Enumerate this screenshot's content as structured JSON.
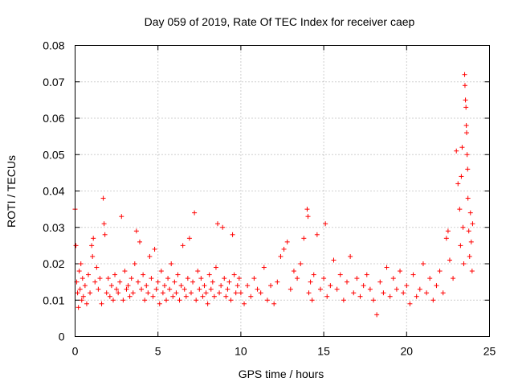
{
  "chart_data": {
    "type": "scatter",
    "title": "Day 059 of 2019, Rate Of TEC Index for receiver caep",
    "xlabel": "GPS time / hours",
    "ylabel": "ROTI / TECUs",
    "xlim": [
      0,
      25
    ],
    "ylim": [
      0,
      0.08
    ],
    "xticks": [
      0,
      5,
      10,
      15,
      20,
      25
    ],
    "yticks": [
      0,
      0.01,
      0.02,
      0.03,
      0.04,
      0.05,
      0.06,
      0.07,
      0.08
    ],
    "xtick_labels": [
      "0",
      "5",
      "10",
      "15",
      "20",
      "25"
    ],
    "ytick_labels": [
      "0",
      "0.01",
      "0.02",
      "0.03",
      "0.04",
      "0.05",
      "0.06",
      "0.07",
      "0.08"
    ],
    "grid": true,
    "marker": "+",
    "color": "#ff0000",
    "series": [
      {
        "name": "ROTI",
        "points": [
          [
            0.0,
            0.035
          ],
          [
            0.05,
            0.025
          ],
          [
            0.1,
            0.015
          ],
          [
            0.15,
            0.012
          ],
          [
            0.2,
            0.008
          ],
          [
            0.25,
            0.018
          ],
          [
            0.3,
            0.013
          ],
          [
            0.35,
            0.02
          ],
          [
            0.4,
            0.01
          ],
          [
            0.45,
            0.016
          ],
          [
            0.5,
            0.011
          ],
          [
            0.6,
            0.014
          ],
          [
            0.7,
            0.009
          ],
          [
            0.8,
            0.017
          ],
          [
            0.9,
            0.012
          ],
          [
            1.0,
            0.025
          ],
          [
            1.05,
            0.022
          ],
          [
            1.1,
            0.027
          ],
          [
            1.2,
            0.015
          ],
          [
            1.3,
            0.019
          ],
          [
            1.4,
            0.013
          ],
          [
            1.5,
            0.016
          ],
          [
            1.6,
            0.009
          ],
          [
            1.7,
            0.038
          ],
          [
            1.75,
            0.031
          ],
          [
            1.8,
            0.028
          ],
          [
            1.9,
            0.012
          ],
          [
            2.0,
            0.016
          ],
          [
            2.1,
            0.011
          ],
          [
            2.2,
            0.014
          ],
          [
            2.3,
            0.01
          ],
          [
            2.4,
            0.017
          ],
          [
            2.5,
            0.013
          ],
          [
            2.6,
            0.012
          ],
          [
            2.7,
            0.015
          ],
          [
            2.8,
            0.033
          ],
          [
            2.9,
            0.01
          ],
          [
            3.0,
            0.018
          ],
          [
            3.1,
            0.013
          ],
          [
            3.2,
            0.014
          ],
          [
            3.3,
            0.011
          ],
          [
            3.4,
            0.016
          ],
          [
            3.5,
            0.012
          ],
          [
            3.6,
            0.02
          ],
          [
            3.7,
            0.029
          ],
          [
            3.8,
            0.015
          ],
          [
            3.9,
            0.026
          ],
          [
            4.0,
            0.013
          ],
          [
            4.1,
            0.017
          ],
          [
            4.2,
            0.01
          ],
          [
            4.3,
            0.014
          ],
          [
            4.4,
            0.012
          ],
          [
            4.5,
            0.022
          ],
          [
            4.6,
            0.016
          ],
          [
            4.7,
            0.011
          ],
          [
            4.8,
            0.024
          ],
          [
            4.9,
            0.013
          ],
          [
            5.0,
            0.015
          ],
          [
            5.1,
            0.009
          ],
          [
            5.2,
            0.018
          ],
          [
            5.3,
            0.012
          ],
          [
            5.4,
            0.014
          ],
          [
            5.5,
            0.01
          ],
          [
            5.6,
            0.016
          ],
          [
            5.7,
            0.013
          ],
          [
            5.8,
            0.02
          ],
          [
            5.9,
            0.011
          ],
          [
            6.0,
            0.015
          ],
          [
            6.1,
            0.012
          ],
          [
            6.2,
            0.017
          ],
          [
            6.3,
            0.01
          ],
          [
            6.4,
            0.014
          ],
          [
            6.5,
            0.025
          ],
          [
            6.6,
            0.013
          ],
          [
            6.7,
            0.011
          ],
          [
            6.8,
            0.016
          ],
          [
            6.9,
            0.027
          ],
          [
            7.0,
            0.012
          ],
          [
            7.1,
            0.015
          ],
          [
            7.2,
            0.034
          ],
          [
            7.3,
            0.01
          ],
          [
            7.4,
            0.018
          ],
          [
            7.5,
            0.013
          ],
          [
            7.6,
            0.016
          ],
          [
            7.7,
            0.011
          ],
          [
            7.8,
            0.014
          ],
          [
            7.9,
            0.012
          ],
          [
            8.0,
            0.009
          ],
          [
            8.1,
            0.017
          ],
          [
            8.2,
            0.013
          ],
          [
            8.3,
            0.015
          ],
          [
            8.4,
            0.011
          ],
          [
            8.5,
            0.019
          ],
          [
            8.6,
            0.031
          ],
          [
            8.7,
            0.012
          ],
          [
            8.8,
            0.014
          ],
          [
            8.9,
            0.03
          ],
          [
            9.0,
            0.016
          ],
          [
            9.1,
            0.011
          ],
          [
            9.2,
            0.013
          ],
          [
            9.3,
            0.015
          ],
          [
            9.4,
            0.01
          ],
          [
            9.5,
            0.028
          ],
          [
            9.6,
            0.017
          ],
          [
            9.7,
            0.012
          ],
          [
            9.8,
            0.014
          ],
          [
            9.9,
            0.016
          ],
          [
            10.0,
            0.012
          ],
          [
            10.2,
            0.009
          ],
          [
            10.4,
            0.014
          ],
          [
            10.6,
            0.011
          ],
          [
            10.8,
            0.016
          ],
          [
            11.0,
            0.013
          ],
          [
            11.2,
            0.012
          ],
          [
            11.4,
            0.019
          ],
          [
            11.6,
            0.01
          ],
          [
            11.8,
            0.014
          ],
          [
            12.0,
            0.009
          ],
          [
            12.2,
            0.015
          ],
          [
            12.4,
            0.022
          ],
          [
            12.6,
            0.024
          ],
          [
            12.8,
            0.026
          ],
          [
            13.0,
            0.013
          ],
          [
            13.2,
            0.018
          ],
          [
            13.4,
            0.016
          ],
          [
            13.6,
            0.02
          ],
          [
            13.8,
            0.027
          ],
          [
            14.0,
            0.035
          ],
          [
            14.05,
            0.033
          ],
          [
            14.1,
            0.012
          ],
          [
            14.2,
            0.015
          ],
          [
            14.3,
            0.01
          ],
          [
            14.4,
            0.017
          ],
          [
            14.6,
            0.028
          ],
          [
            14.8,
            0.013
          ],
          [
            15.0,
            0.016
          ],
          [
            15.1,
            0.031
          ],
          [
            15.2,
            0.011
          ],
          [
            15.4,
            0.014
          ],
          [
            15.6,
            0.021
          ],
          [
            15.8,
            0.013
          ],
          [
            16.0,
            0.017
          ],
          [
            16.2,
            0.01
          ],
          [
            16.4,
            0.015
          ],
          [
            16.6,
            0.022
          ],
          [
            16.8,
            0.012
          ],
          [
            17.0,
            0.016
          ],
          [
            17.2,
            0.011
          ],
          [
            17.4,
            0.014
          ],
          [
            17.6,
            0.017
          ],
          [
            17.8,
            0.013
          ],
          [
            18.0,
            0.01
          ],
          [
            18.2,
            0.006
          ],
          [
            18.4,
            0.015
          ],
          [
            18.6,
            0.012
          ],
          [
            18.8,
            0.019
          ],
          [
            19.0,
            0.011
          ],
          [
            19.2,
            0.016
          ],
          [
            19.4,
            0.013
          ],
          [
            19.6,
            0.018
          ],
          [
            19.8,
            0.012
          ],
          [
            20.0,
            0.014
          ],
          [
            20.2,
            0.009
          ],
          [
            20.4,
            0.017
          ],
          [
            20.6,
            0.011
          ],
          [
            20.8,
            0.013
          ],
          [
            21.0,
            0.02
          ],
          [
            21.2,
            0.012
          ],
          [
            21.4,
            0.016
          ],
          [
            21.6,
            0.01
          ],
          [
            21.8,
            0.014
          ],
          [
            22.0,
            0.018
          ],
          [
            22.2,
            0.012
          ],
          [
            22.4,
            0.027
          ],
          [
            22.5,
            0.029
          ],
          [
            22.6,
            0.021
          ],
          [
            22.8,
            0.016
          ],
          [
            23.0,
            0.051
          ],
          [
            23.1,
            0.042
          ],
          [
            23.2,
            0.035
          ],
          [
            23.25,
            0.025
          ],
          [
            23.3,
            0.044
          ],
          [
            23.35,
            0.052
          ],
          [
            23.4,
            0.03
          ],
          [
            23.45,
            0.02
          ],
          [
            23.5,
            0.072
          ],
          [
            23.52,
            0.069
          ],
          [
            23.55,
            0.065
          ],
          [
            23.58,
            0.063
          ],
          [
            23.6,
            0.058
          ],
          [
            23.62,
            0.056
          ],
          [
            23.65,
            0.05
          ],
          [
            23.68,
            0.046
          ],
          [
            23.7,
            0.038
          ],
          [
            23.75,
            0.029
          ],
          [
            23.8,
            0.022
          ],
          [
            23.85,
            0.034
          ],
          [
            23.9,
            0.026
          ],
          [
            23.95,
            0.018
          ],
          [
            23.98,
            0.031
          ]
        ]
      }
    ]
  }
}
